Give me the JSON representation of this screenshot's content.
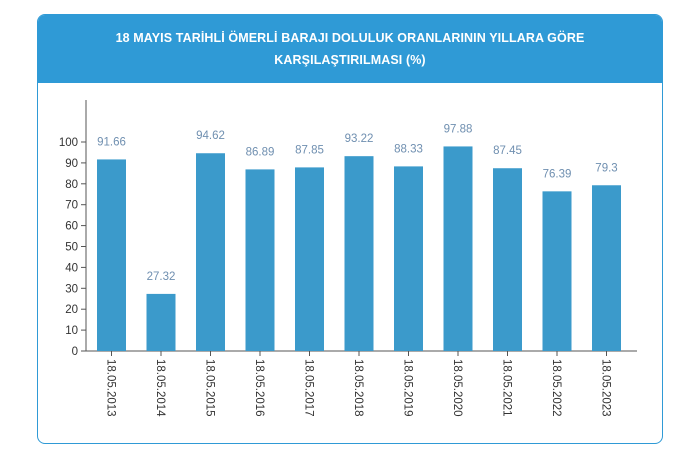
{
  "header": {
    "title": "18 MAYIS TARİHLİ ÖMERLİ BARAJI DOLULUK ORANLARININ YILLARA GÖRE KARŞILAŞTIRILMASI (%)"
  },
  "colors": {
    "header_bg": "#2f9ad6",
    "bar": "#3b9acb",
    "data_label": "#6f8fb0"
  },
  "chart_data": {
    "type": "bar",
    "title": "18 MAYIS TARİHLİ ÖMERLİ BARAJI DOLULUK ORANLARININ YILLARA GÖRE KARŞILAŞTIRILMASI (%)",
    "categories": [
      "18.05.2013",
      "18.05.2014",
      "18.05.2015",
      "18.05.2016",
      "18.05.2017",
      "18.05.2018",
      "18.05.2019",
      "18.05.2020",
      "18.05.2021",
      "18.05.2022",
      "18.05.2023"
    ],
    "values": [
      91.66,
      27.32,
      94.62,
      86.89,
      87.85,
      93.22,
      88.33,
      97.88,
      87.45,
      76.39,
      79.3
    ],
    "data_labels": [
      "91.66",
      "27.32",
      "94.62",
      "86.89",
      "87.85",
      "93.22",
      "88.33",
      "97.88",
      "87.45",
      "76.39",
      "79.3"
    ],
    "yticks": [
      "0",
      "10",
      "20",
      "30",
      "40",
      "50",
      "60",
      "70",
      "80",
      "90",
      "100"
    ],
    "ylim": [
      0,
      100
    ],
    "grid": false,
    "legend": "none"
  }
}
